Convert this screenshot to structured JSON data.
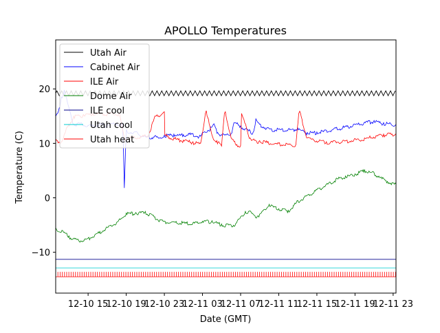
{
  "chart_data": {
    "type": "line",
    "title": "APOLLO Temperatures",
    "xlabel": "Date (GMT)",
    "ylabel": "Temperature (C)",
    "xlim_hours": [
      11.6,
      47.3
    ],
    "ylim": [
      -17.5,
      29
    ],
    "y_ticks": [
      -10,
      0,
      10,
      20
    ],
    "y_tick_labels": [
      "−10",
      "0",
      "10",
      "20"
    ],
    "x_ticks_hours": [
      15,
      19,
      23,
      27,
      31,
      35,
      39,
      43,
      47
    ],
    "x_tick_labels": [
      "12-10 15",
      "12-10 19",
      "12-10 23",
      "12-11 03",
      "12-11 07",
      "12-11 11",
      "12-11 15",
      "12-11 19",
      "12-11 23"
    ],
    "legend_location": "upper-left",
    "series": [
      {
        "name": "Utah Air",
        "color": "#000000",
        "style": "oscillating",
        "x": [
          11.6,
          47.3
        ],
        "y": [
          19.2,
          19.2
        ],
        "oscillation_amplitude": 0.45,
        "oscillation_period_hours": 0.5
      },
      {
        "name": "Cabinet Air",
        "color": "#0000ff",
        "x": [
          11.6,
          11.9,
          12.2,
          12.5,
          13.0,
          13.5,
          14.0,
          15.0,
          16.0,
          17.0,
          18.0,
          18.6,
          18.7,
          18.8,
          19.0,
          19.5,
          20.0,
          21.0,
          22.0,
          22.5,
          23.0,
          24.0,
          25.0,
          26.0,
          26.8,
          27.0,
          28.0,
          28.2,
          28.6,
          29.0,
          30.0,
          30.3,
          30.5,
          31.0,
          32.0,
          32.3,
          32.6,
          33.0,
          34.0,
          35.0,
          36.0,
          37.0,
          38.0,
          39.0,
          40.0,
          41.0,
          42.0,
          43.0,
          44.0,
          45.0,
          46.0,
          47.3
        ],
        "y": [
          15.0,
          16.0,
          18.5,
          19.8,
          16.5,
          13.5,
          13.8,
          13.3,
          13.5,
          13.5,
          13.7,
          13.5,
          9.5,
          1.8,
          12.5,
          12.0,
          12.1,
          11.2,
          11.4,
          11.0,
          11.5,
          11.7,
          11.6,
          11.8,
          11.3,
          12.0,
          13.0,
          13.6,
          12.0,
          11.6,
          11.8,
          13.8,
          13.8,
          13.2,
          12.3,
          12.0,
          14.5,
          13.5,
          12.7,
          12.6,
          12.6,
          12.8,
          12.0,
          12.1,
          12.4,
          12.8,
          13.1,
          13.5,
          13.9,
          14.2,
          13.8,
          13.5
        ]
      },
      {
        "name": "ILE Air",
        "color": "#ff0000",
        "x": [
          11.6,
          12.2,
          12.8,
          13.5,
          14.5,
          15.5,
          16.5,
          17.5,
          18.3,
          18.8,
          19.5,
          20.5,
          21.3,
          22.0,
          23.0,
          23.05,
          24.0,
          25.0,
          26.0,
          26.5,
          26.8,
          27.3,
          27.4,
          28.0,
          28.5,
          28.8,
          29.0,
          29.3,
          29.4,
          30.0,
          30.6,
          31.0,
          31.1,
          32.0,
          32.6,
          32.9,
          33.0,
          35.0,
          36.0,
          36.8,
          37.1,
          37.2,
          38.0,
          40.0,
          42.0,
          44.0,
          46.0,
          47.3
        ],
        "y": [
          10.8,
          10.3,
          13.0,
          15.0,
          15.3,
          15.5,
          15.5,
          15.6,
          15.5,
          11.0,
          11.2,
          11.3,
          11.5,
          15.0,
          15.8,
          11.6,
          11.0,
          10.6,
          10.3,
          10.1,
          10.0,
          15.5,
          16.0,
          11.5,
          10.5,
          10.0,
          9.5,
          15.5,
          15.8,
          11.0,
          9.8,
          9.6,
          15.5,
          11.0,
          10.5,
          10.3,
          10.5,
          10.0,
          9.9,
          9.8,
          15.5,
          15.9,
          11.0,
          10.3,
          10.5,
          11.0,
          11.7,
          11.8
        ]
      },
      {
        "name": "Dome Air",
        "color": "#008000",
        "x": [
          11.6,
          12.5,
          13.0,
          14.0,
          15.0,
          16.0,
          17.0,
          18.0,
          19.0,
          20.0,
          21.0,
          22.0,
          23.0,
          24.0,
          25.0,
          26.0,
          27.0,
          28.0,
          29.0,
          30.0,
          30.5,
          31.0,
          31.5,
          32.0,
          32.5,
          33.0,
          34.0,
          35.0,
          36.0,
          37.0,
          38.0,
          39.0,
          40.0,
          41.0,
          42.0,
          43.0,
          44.0,
          45.0,
          45.5,
          46.0,
          47.3
        ],
        "y": [
          -5.5,
          -6.3,
          -7.0,
          -7.8,
          -7.4,
          -6.5,
          -5.4,
          -4.5,
          -2.8,
          -2.7,
          -2.5,
          -3.5,
          -4.3,
          -4.4,
          -4.5,
          -4.6,
          -4.3,
          -4.2,
          -4.8,
          -5.0,
          -4.7,
          -3.5,
          -2.5,
          -2.4,
          -3.3,
          -3.0,
          -1.2,
          -2.0,
          -2.3,
          -0.5,
          0.5,
          1.5,
          2.5,
          3.5,
          4.0,
          4.4,
          5.2,
          4.6,
          4.0,
          3.5,
          2.5
        ]
      },
      {
        "name": "ILE cool",
        "color": "#00008b",
        "x": [
          11.6,
          47.3
        ],
        "y": [
          -11.3,
          -11.3
        ]
      },
      {
        "name": "Utah cool",
        "color": "#00ced1",
        "x": [
          11.6,
          47.3
        ],
        "y": [
          -12.9,
          -12.9
        ]
      },
      {
        "name": "Utah heat",
        "color": "#ff0000",
        "style": "pulses",
        "x": [
          11.6,
          47.3
        ],
        "y": [
          -14.5,
          -13.6
        ],
        "pulse_period_hours": 0.23
      }
    ]
  }
}
